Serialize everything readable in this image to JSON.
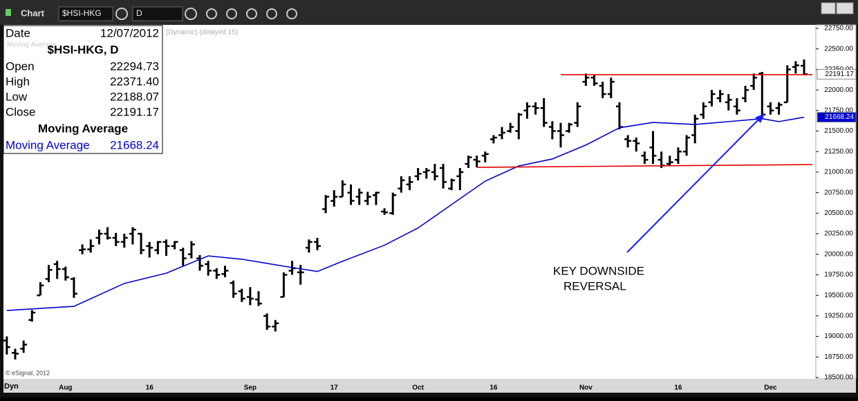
{
  "toolbar": {
    "title": "Chart",
    "symbol": "$HSI-HKG",
    "interval": "D"
  },
  "chart_data": {
    "type": "ohlc",
    "header_text": "(Dynamic) (delayed 15)",
    "study_label": "Moving Average",
    "copyright": "© eSignal, 2012",
    "color": "#000000",
    "categories": [
      null,
      null,
      null,
      null,
      null,
      null,
      null,
      "Aug",
      null,
      null,
      null,
      null,
      null,
      null,
      null,
      null,
      null,
      "16",
      null,
      null,
      null,
      null,
      null,
      null,
      null,
      null,
      null,
      null,
      null,
      "Sep",
      null,
      null,
      null,
      null,
      null,
      null,
      null,
      null,
      null,
      "17",
      null,
      null,
      null,
      null,
      null,
      null,
      null,
      null,
      null,
      "Oct",
      null,
      null,
      null,
      null,
      null,
      null,
      null,
      null,
      "16",
      null,
      null,
      null,
      null,
      null,
      null,
      null,
      null,
      null,
      null,
      "Nov",
      null,
      null,
      null,
      null,
      null,
      null,
      null,
      null,
      null,
      null,
      "16",
      null,
      null,
      null,
      null,
      null,
      null,
      null,
      null,
      null,
      null,
      "Dec",
      null,
      null,
      null,
      null
    ],
    "open": [
      18950,
      18800,
      18850,
      19200,
      19500,
      19700,
      19880,
      19820,
      19700,
      20050,
      20060,
      20200,
      20250,
      20200,
      20150,
      20250,
      20250,
      20100,
      20050,
      20150,
      20100,
      20050,
      20000,
      19950,
      19880,
      19800,
      19760,
      19650,
      19550,
      19480,
      19450,
      19250,
      19120,
      19480,
      19800,
      19780,
      20080,
      20150,
      20550,
      20650,
      20700,
      20750,
      20700,
      20650,
      20720,
      20520,
      20500,
      20800,
      20850,
      20950,
      21000,
      21000,
      21050,
      20800,
      20950,
      21100,
      21150,
      21200,
      21400,
      21450,
      21500,
      21500,
      21750,
      21800,
      21780,
      21550,
      21500,
      21500,
      21600,
      22100,
      22150,
      22050,
      21950,
      21800,
      21400,
      21380,
      21200,
      21300,
      21150,
      21100,
      21150,
      21250,
      21450,
      21700,
      21850,
      21900,
      21850,
      21800,
      21900,
      22050,
      22200,
      21800,
      21780,
      21850,
      22280,
      22294.73
    ],
    "high": [
      19000,
      18850,
      18950,
      19320,
      19660,
      19870,
      19920,
      19850,
      19720,
      20120,
      20180,
      20300,
      20330,
      20260,
      20250,
      20330,
      20260,
      20150,
      20160,
      20180,
      20160,
      20080,
      20160,
      19990,
      19920,
      19830,
      19860,
      19680,
      19580,
      19600,
      19550,
      19280,
      19200,
      19780,
      19920,
      19870,
      20180,
      20200,
      20720,
      20780,
      20900,
      20850,
      20800,
      20760,
      20760,
      20560,
      20750,
      20950,
      20950,
      21050,
      21050,
      21100,
      21100,
      20920,
      21050,
      21200,
      21200,
      21250,
      21450,
      21550,
      21600,
      21720,
      21850,
      21850,
      21900,
      21620,
      21600,
      21600,
      21850,
      22200,
      22180,
      22100,
      22150,
      21850,
      21450,
      21420,
      21250,
      21500,
      21250,
      21200,
      21300,
      21450,
      21700,
      21850,
      22000,
      22000,
      21950,
      21900,
      22050,
      22200,
      22220,
      21850,
      21850,
      22300,
      22350,
      22371.4
    ],
    "low": [
      18780,
      18720,
      18800,
      19180,
      19500,
      19660,
      19700,
      19680,
      19470,
      20000,
      20020,
      20120,
      20180,
      20100,
      20080,
      20120,
      20000,
      19960,
      20000,
      19980,
      20060,
      19860,
      19950,
      19800,
      19740,
      19700,
      19720,
      19470,
      19420,
      19380,
      19370,
      19080,
      19060,
      19480,
      19750,
      19630,
      20020,
      20050,
      20500,
      20580,
      20700,
      20600,
      20600,
      20600,
      20600,
      20480,
      20480,
      20750,
      20780,
      20900,
      20920,
      20900,
      20800,
      20780,
      20780,
      21050,
      21060,
      21120,
      21350,
      21400,
      21480,
      21400,
      21650,
      21700,
      21550,
      21400,
      21300,
      21480,
      21550,
      22050,
      22050,
      21900,
      21900,
      21520,
      21300,
      21250,
      21100,
      21100,
      21050,
      21080,
      21100,
      21200,
      21350,
      21650,
      21800,
      21850,
      21750,
      21700,
      21850,
      22000,
      21650,
      21700,
      21700,
      21850,
      22200,
      22188.07
    ],
    "close": [
      18870,
      18790,
      18900,
      19290,
      19620,
      19810,
      19820,
      19720,
      19520,
      20060,
      20100,
      20250,
      20200,
      20150,
      20200,
      20300,
      20050,
      20080,
      20150,
      20100,
      20150,
      19950,
      20120,
      19860,
      19800,
      19750,
      19800,
      19520,
      19460,
      19460,
      19400,
      19120,
      19160,
      19750,
      19830,
      19780,
      20150,
      20100,
      20700,
      20700,
      20850,
      20650,
      20750,
      20700,
      20750,
      20510,
      20720,
      20900,
      20880,
      20980,
      21020,
      20950,
      20880,
      20900,
      21000,
      21180,
      21130,
      21220,
      21420,
      21480,
      21550,
      21700,
      21800,
      21780,
      21600,
      21500,
      21450,
      21580,
      21800,
      22150,
      22080,
      21950,
      22100,
      21550,
      21380,
      21350,
      21150,
      21200,
      21080,
      21120,
      21250,
      21420,
      21650,
      21800,
      21950,
      21950,
      21880,
      21750,
      22000,
      22150,
      21700,
      21750,
      21820,
      22250,
      22300,
      22191.17
    ],
    "moving_average": {
      "name": "Moving Average",
      "color": "#0000cc",
      "x": [
        0,
        8,
        14,
        19,
        24,
        28,
        33,
        37,
        40,
        45,
        49,
        53,
        57,
        61,
        65,
        69,
        73,
        77,
        82,
        86,
        90,
        92,
        95
      ],
      "values": [
        19316,
        19366,
        19645,
        19770,
        19980,
        19940,
        19855,
        19790,
        19915,
        20110,
        20320,
        20605,
        20890,
        21075,
        21160,
        21330,
        21540,
        21605,
        21580,
        21615,
        21650,
        21615,
        21668
      ]
    },
    "lines": [
      {
        "color": "#e00000",
        "x": [
          66,
          96
        ],
        "values": [
          22186,
          22186
        ]
      },
      {
        "color": "#e00000",
        "x": [
          56,
          96
        ],
        "values": [
          21058,
          21092
        ]
      }
    ],
    "annotation": [
      "KEY DOWNSIDE",
      "REVERSAL"
    ],
    "xlim": [
      -0.4,
      96.4
    ],
    "ylim": [
      18500,
      22750
    ],
    "yticks": [
      {
        "value": 18500,
        "label": "18500.00"
      },
      {
        "value": 18750,
        "label": "18750.00"
      },
      {
        "value": 19000,
        "label": "19000.00"
      },
      {
        "value": 19250,
        "label": "19250.00"
      },
      {
        "value": 19500,
        "label": "19500.00"
      },
      {
        "value": 19750,
        "label": "19750.00"
      },
      {
        "value": 20000,
        "label": "20000.00"
      },
      {
        "value": 20250,
        "label": "20250.00"
      },
      {
        "value": 20500,
        "label": "20500.00"
      },
      {
        "value": 20750,
        "label": "20750.00"
      },
      {
        "value": 21000,
        "label": "21000.00"
      },
      {
        "value": 21250,
        "label": "21250.00"
      },
      {
        "value": 21500,
        "label": "21500.00"
      },
      {
        "value": 21750,
        "label": "21750.00"
      },
      {
        "value": 22000,
        "label": "22000.00"
      },
      {
        "value": 22250,
        "label": "22250.00"
      },
      {
        "value": 22500,
        "label": "22500.00"
      },
      {
        "value": 22750,
        "label": "22750.00"
      }
    ]
  },
  "info_box": {
    "date_label": "Date",
    "date": "12/07/2012",
    "symbol": "$HSI-HKG, D",
    "rows": [
      [
        "Open",
        "22294.73"
      ],
      [
        "High",
        "22371.40"
      ],
      [
        "Low",
        "22188.07"
      ],
      [
        "Close",
        "22191.17"
      ]
    ],
    "study": "Moving Average",
    "study_row": [
      "Moving Average",
      "21668.24"
    ]
  },
  "footer": {
    "mode": "Dyn"
  }
}
